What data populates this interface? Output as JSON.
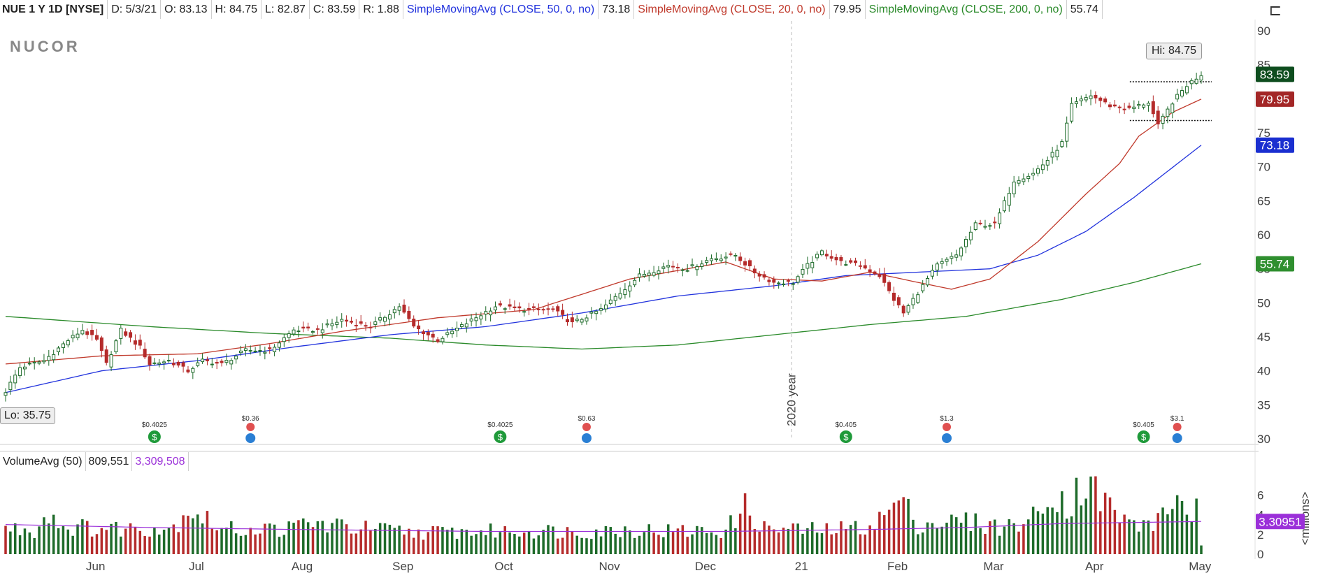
{
  "header": {
    "ticker": "NUE 1 Y 1D [NYSE]",
    "d": "D: 5/3/21",
    "o": "O: 83.13",
    "h": "H: 84.75",
    "l": "L: 82.87",
    "c": "C: 83.59",
    "r": "R: 1.88",
    "sma50_label": "SimpleMovingAvg (CLOSE, 50, 0, no)",
    "sma50_value": "73.18",
    "sma20_label": "SimpleMovingAvg (CLOSE, 20, 0, no)",
    "sma20_value": "79.95",
    "sma200_label": "SimpleMovingAvg (CLOSE, 200, 0, no)",
    "sma200_value": "55.74"
  },
  "logo": "NUCOR",
  "lo_label": "Lo: 35.75",
  "hi_label": "Hi: 84.75",
  "year_marker": "2020 year",
  "volume_header": {
    "label": "VolumeAvg (50)",
    "value1": "809,551",
    "value2": "3,309,508"
  },
  "volume_unit": "<millions>",
  "colors": {
    "up": "#1e6b2a",
    "down": "#b52b2b",
    "sma50": "#2233dd",
    "sma20": "#c0392b",
    "sma200": "#2a8a2a",
    "vol_avg": "#9b30d9",
    "last_price_bg": "#0e4d1e",
    "sma20_bg": "#a32626",
    "sma50_bg": "#1a2fd0",
    "sma200_bg": "#2f8f2f",
    "vol_tag_bg": "#9b30d9"
  },
  "price_tags": {
    "last": "83.59",
    "sma20": "79.95",
    "sma50": "73.18",
    "sma200": "55.74"
  },
  "volume_tag": "3.30951",
  "chart_data": {
    "type": "candlestick",
    "ylim": [
      30,
      90
    ],
    "yticks": [
      90,
      85,
      80,
      75,
      70,
      65,
      60,
      55,
      50,
      45,
      40,
      35,
      30
    ],
    "volume_ylim": [
      0,
      8
    ],
    "volume_yticks": [
      6,
      4,
      2,
      0
    ],
    "x_labels": [
      "Jun",
      "Jul",
      "Aug",
      "Sep",
      "Oct",
      "Nov",
      "Dec",
      "21",
      "Feb",
      "Mar",
      "Apr",
      "May"
    ],
    "sma20_anchors": [
      [
        0,
        41.0
      ],
      [
        20,
        42.2
      ],
      [
        40,
        42.5
      ],
      [
        55,
        44.0
      ],
      [
        70,
        45.8
      ],
      [
        90,
        47.8
      ],
      [
        110,
        49.0
      ],
      [
        130,
        53.5
      ],
      [
        150,
        56.0
      ],
      [
        160,
        53.5
      ],
      [
        170,
        53.2
      ],
      [
        180,
        54.5
      ],
      [
        190,
        53.0
      ],
      [
        197,
        52.0
      ],
      [
        205,
        53.5
      ],
      [
        215,
        59.0
      ],
      [
        225,
        66.0
      ],
      [
        232,
        70.5
      ],
      [
        236,
        74.5
      ],
      [
        243,
        78.0
      ],
      [
        249,
        79.95
      ]
    ],
    "sma50_anchors": [
      [
        0,
        36.8
      ],
      [
        20,
        40.0
      ],
      [
        40,
        41.5
      ],
      [
        60,
        43.5
      ],
      [
        80,
        45.3
      ],
      [
        100,
        46.5
      ],
      [
        120,
        48.5
      ],
      [
        140,
        51.0
      ],
      [
        160,
        52.5
      ],
      [
        175,
        54.0
      ],
      [
        190,
        54.5
      ],
      [
        205,
        55.0
      ],
      [
        215,
        57.0
      ],
      [
        225,
        60.5
      ],
      [
        235,
        65.5
      ],
      [
        249,
        73.18
      ]
    ],
    "sma200_anchors": [
      [
        0,
        48.0
      ],
      [
        30,
        46.5
      ],
      [
        55,
        45.5
      ],
      [
        80,
        44.8
      ],
      [
        100,
        43.8
      ],
      [
        120,
        43.2
      ],
      [
        140,
        43.8
      ],
      [
        160,
        45.3
      ],
      [
        180,
        46.8
      ],
      [
        200,
        48.0
      ],
      [
        220,
        50.5
      ],
      [
        235,
        53.0
      ],
      [
        249,
        55.74
      ]
    ],
    "close_anchors": [
      [
        0,
        37.0
      ],
      [
        3,
        40.5
      ],
      [
        8,
        41.5
      ],
      [
        13,
        44.5
      ],
      [
        16,
        46.0
      ],
      [
        19,
        44.5
      ],
      [
        21,
        41.0
      ],
      [
        24,
        46.0
      ],
      [
        28,
        43.5
      ],
      [
        30,
        41.0
      ],
      [
        34,
        41.5
      ],
      [
        38,
        40.0
      ],
      [
        41,
        41.5
      ],
      [
        45,
        41.0
      ],
      [
        50,
        43.0
      ],
      [
        55,
        43.0
      ],
      [
        60,
        46.0
      ],
      [
        65,
        46.0
      ],
      [
        70,
        47.5
      ],
      [
        76,
        46.5
      ],
      [
        82,
        49.5
      ],
      [
        85,
        46.5
      ],
      [
        90,
        44.5
      ],
      [
        96,
        47.0
      ],
      [
        102,
        49.5
      ],
      [
        108,
        49.0
      ],
      [
        114,
        49.0
      ],
      [
        118,
        47.0
      ],
      [
        124,
        49.0
      ],
      [
        128,
        51.5
      ],
      [
        132,
        54.0
      ],
      [
        138,
        55.5
      ],
      [
        142,
        55.0
      ],
      [
        147,
        56.5
      ],
      [
        152,
        57.0
      ],
      [
        156,
        54.5
      ],
      [
        160,
        53.0
      ],
      [
        164,
        53.0
      ],
      [
        167,
        55.5
      ],
      [
        170,
        57.5
      ],
      [
        174,
        56.0
      ],
      [
        178,
        55.5
      ],
      [
        182,
        54.0
      ],
      [
        185,
        50.5
      ],
      [
        187,
        48.5
      ],
      [
        190,
        51.5
      ],
      [
        194,
        55.5
      ],
      [
        198,
        57.0
      ],
      [
        202,
        61.5
      ],
      [
        206,
        61.5
      ],
      [
        210,
        68.0
      ],
      [
        214,
        69.0
      ],
      [
        217,
        71.0
      ],
      [
        220,
        73.5
      ],
      [
        222,
        79.0
      ],
      [
        226,
        80.5
      ],
      [
        230,
        79.0
      ],
      [
        234,
        78.5
      ],
      [
        238,
        79.5
      ],
      [
        240,
        76.0
      ],
      [
        243,
        79.5
      ],
      [
        246,
        82.0
      ],
      [
        249,
        83.59
      ]
    ],
    "volume_anchors": [
      [
        0,
        2.6
      ],
      [
        6,
        2.4
      ],
      [
        9,
        4.3
      ],
      [
        12,
        2.8
      ],
      [
        20,
        2.6
      ],
      [
        35,
        2.7
      ],
      [
        38,
        4.8
      ],
      [
        45,
        2.5
      ],
      [
        60,
        2.6
      ],
      [
        62,
        3.2
      ],
      [
        70,
        2.8
      ],
      [
        80,
        2.4
      ],
      [
        85,
        2.2
      ],
      [
        100,
        2.3
      ],
      [
        110,
        2.4
      ],
      [
        120,
        2.3
      ],
      [
        130,
        2.5
      ],
      [
        140,
        2.3
      ],
      [
        150,
        2.4
      ],
      [
        154,
        4.7
      ],
      [
        158,
        2.6
      ],
      [
        170,
        2.4
      ],
      [
        178,
        2.7
      ],
      [
        182,
        3.5
      ],
      [
        184,
        4.3
      ],
      [
        186,
        5.6
      ],
      [
        190,
        3.1
      ],
      [
        200,
        3.3
      ],
      [
        208,
        2.7
      ],
      [
        212,
        3.3
      ],
      [
        216,
        4.1
      ],
      [
        218,
        7.1
      ],
      [
        221,
        4.8
      ],
      [
        223,
        6.2
      ],
      [
        225,
        7.6
      ],
      [
        228,
        5.6
      ],
      [
        230,
        4.8
      ],
      [
        234,
        3.0
      ],
      [
        240,
        3.2
      ],
      [
        243,
        5.5
      ],
      [
        244,
        5.3
      ],
      [
        246,
        4.6
      ],
      [
        247,
        3.6
      ],
      [
        248,
        7.4
      ],
      [
        249,
        0.7
      ]
    ],
    "volume_avg_anchors": [
      [
        0,
        3.0
      ],
      [
        30,
        2.7
      ],
      [
        60,
        2.5
      ],
      [
        100,
        2.3
      ],
      [
        150,
        2.3
      ],
      [
        180,
        2.5
      ],
      [
        200,
        2.7
      ],
      [
        220,
        3.1
      ],
      [
        249,
        3.31
      ]
    ],
    "dividend_events": [
      {
        "index": 31,
        "amount": "$0.4025",
        "type": "dividend"
      },
      {
        "index": 103,
        "amount": "$0.4025",
        "type": "dividend"
      },
      {
        "index": 175,
        "amount": "$0.405",
        "type": "dividend"
      },
      {
        "index": 237,
        "amount": "$0.405",
        "type": "dividend"
      }
    ],
    "earnings_events": [
      {
        "index": 51,
        "amount": "$0.36",
        "type": "earnings"
      },
      {
        "index": 121,
        "amount": "$0.63",
        "type": "earnings"
      },
      {
        "index": 196,
        "amount": "$1.3",
        "type": "earnings"
      },
      {
        "index": 244,
        "amount": "$3.1",
        "type": "earnings"
      }
    ],
    "consolidation_range": {
      "upper": 82.5,
      "lower": 76.8,
      "start_index": 235,
      "end_index": 250
    }
  }
}
